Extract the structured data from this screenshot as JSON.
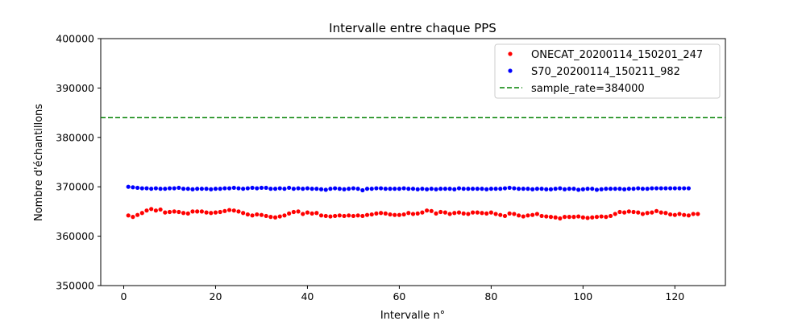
{
  "chart_data": {
    "type": "scatter",
    "title": "Intervalle entre chaque PPS",
    "xlabel": "Intervalle n°",
    "ylabel": "Nombre d'échantillons",
    "xlim": [
      -5,
      131
    ],
    "ylim": [
      350000,
      400000
    ],
    "x_ticks": [
      0,
      20,
      40,
      60,
      80,
      100,
      120
    ],
    "y_ticks": [
      350000,
      360000,
      370000,
      380000,
      390000,
      400000
    ],
    "grid": false,
    "legend_position": "top-right",
    "series": [
      {
        "name": "ONECAT_20200114_150201_247",
        "color": "#ff0000",
        "marker": "dot",
        "x": [
          1,
          2,
          3,
          4,
          5,
          6,
          7,
          8,
          9,
          10,
          11,
          12,
          13,
          14,
          15,
          16,
          17,
          18,
          19,
          20,
          21,
          22,
          23,
          24,
          25,
          26,
          27,
          28,
          29,
          30,
          31,
          32,
          33,
          34,
          35,
          36,
          37,
          38,
          39,
          40,
          41,
          42,
          43,
          44,
          45,
          46,
          47,
          48,
          49,
          50,
          51,
          52,
          53,
          54,
          55,
          56,
          57,
          58,
          59,
          60,
          61,
          62,
          63,
          64,
          65,
          66,
          67,
          68,
          69,
          70,
          71,
          72,
          73,
          74,
          75,
          76,
          77,
          78,
          79,
          80,
          81,
          82,
          83,
          84,
          85,
          86,
          87,
          88,
          89,
          90,
          91,
          92,
          93,
          94,
          95,
          96,
          97,
          98,
          99,
          100,
          101,
          102,
          103,
          104,
          105,
          106,
          107,
          108,
          109,
          110,
          111,
          112,
          113,
          114,
          115,
          116,
          117,
          118,
          119,
          120,
          121,
          122,
          123,
          124,
          125
        ],
        "y": [
          364200,
          363900,
          364300,
          364700,
          365200,
          365500,
          365200,
          365400,
          364800,
          364900,
          365000,
          364900,
          364700,
          364600,
          365000,
          365000,
          365000,
          364800,
          364700,
          364800,
          364900,
          365100,
          365300,
          365200,
          365000,
          364700,
          364400,
          364200,
          364400,
          364300,
          364100,
          363900,
          363800,
          364000,
          364200,
          364600,
          364900,
          365000,
          364500,
          364800,
          364600,
          364700,
          364200,
          364100,
          364000,
          364100,
          364200,
          364100,
          364200,
          364100,
          364200,
          364100,
          364300,
          364400,
          364600,
          364700,
          364600,
          364400,
          364300,
          364300,
          364400,
          364700,
          364500,
          364600,
          364800,
          365200,
          365100,
          364600,
          364900,
          364800,
          364500,
          364700,
          364800,
          364600,
          364500,
          364800,
          364800,
          364700,
          364600,
          364800,
          364500,
          364300,
          364100,
          364600,
          364500,
          364200,
          364000,
          364200,
          364300,
          364500,
          364100,
          364000,
          363900,
          363800,
          363600,
          363900,
          363900,
          363900,
          364000,
          363800,
          363700,
          363800,
          363900,
          364000,
          363900,
          364100,
          364500,
          364900,
          364800,
          365000,
          364900,
          364800,
          364500,
          364700,
          364800,
          365100,
          364800,
          364700,
          364400,
          364300,
          364500,
          364300,
          364200,
          364500,
          364500
        ]
      },
      {
        "name": "S70_20200114_150211_982",
        "color": "#0000ff",
        "marker": "dot",
        "x": [
          1,
          2,
          3,
          4,
          5,
          6,
          7,
          8,
          9,
          10,
          11,
          12,
          13,
          14,
          15,
          16,
          17,
          18,
          19,
          20,
          21,
          22,
          23,
          24,
          25,
          26,
          27,
          28,
          29,
          30,
          31,
          32,
          33,
          34,
          35,
          36,
          37,
          38,
          39,
          40,
          41,
          42,
          43,
          44,
          45,
          46,
          47,
          48,
          49,
          50,
          51,
          52,
          53,
          54,
          55,
          56,
          57,
          58,
          59,
          60,
          61,
          62,
          63,
          64,
          65,
          66,
          67,
          68,
          69,
          70,
          71,
          72,
          73,
          74,
          75,
          76,
          77,
          78,
          79,
          80,
          81,
          82,
          83,
          84,
          85,
          86,
          87,
          88,
          89,
          90,
          91,
          92,
          93,
          94,
          95,
          96,
          97,
          98,
          99,
          100,
          101,
          102,
          103,
          104,
          105,
          106,
          107,
          108,
          109,
          110,
          111,
          112,
          113,
          114,
          115,
          116,
          117,
          118,
          119,
          120,
          121,
          122,
          123
        ],
        "y": [
          370000,
          369900,
          369800,
          369700,
          369700,
          369600,
          369700,
          369600,
          369600,
          369700,
          369700,
          369800,
          369600,
          369600,
          369500,
          369600,
          369600,
          369600,
          369500,
          369600,
          369600,
          369700,
          369700,
          369800,
          369700,
          369600,
          369700,
          369800,
          369700,
          369800,
          369800,
          369600,
          369600,
          369700,
          369600,
          369800,
          369600,
          369700,
          369600,
          369700,
          369600,
          369600,
          369500,
          369400,
          369600,
          369700,
          369600,
          369500,
          369600,
          369700,
          369600,
          369300,
          369600,
          369600,
          369700,
          369700,
          369600,
          369600,
          369600,
          369600,
          369700,
          369600,
          369600,
          369500,
          369600,
          369500,
          369600,
          369500,
          369600,
          369600,
          369600,
          369500,
          369700,
          369600,
          369600,
          369600,
          369600,
          369600,
          369500,
          369600,
          369600,
          369600,
          369700,
          369800,
          369700,
          369600,
          369600,
          369600,
          369500,
          369600,
          369600,
          369500,
          369500,
          369600,
          369700,
          369500,
          369600,
          369600,
          369400,
          369500,
          369600,
          369600,
          369400,
          369500,
          369600,
          369600,
          369600,
          369600,
          369500,
          369600,
          369600,
          369700,
          369600,
          369600,
          369700,
          369700,
          369700,
          369700,
          369700,
          369700,
          369700,
          369700,
          369700
        ]
      }
    ],
    "reference_lines": [
      {
        "name": "sample_rate=384000",
        "y": 384000,
        "color": "#008000",
        "style": "dashed"
      }
    ]
  }
}
